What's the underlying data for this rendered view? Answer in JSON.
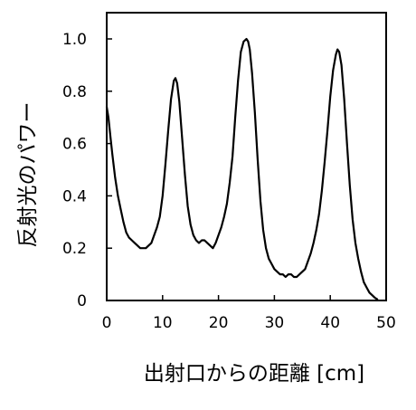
{
  "chart_data": {
    "type": "line",
    "title": "",
    "xlabel": "出射口からの距離 [cm]",
    "ylabel": "反射光のパワー",
    "xlim": [
      0,
      50
    ],
    "ylim": [
      0,
      1.0
    ],
    "x_ticks": [
      0,
      10,
      20,
      30,
      40,
      50
    ],
    "x_tick_labels": [
      "0",
      "10",
      "20",
      "30",
      "40",
      "50"
    ],
    "y_ticks": [
      0,
      0.2,
      0.4,
      0.6,
      0.8,
      1.0
    ],
    "y_tick_labels": [
      "0",
      "0.2",
      "0.4",
      "0.6",
      "0.8",
      "1.0"
    ],
    "grid": false,
    "legend": "none",
    "line_color": "#000000",
    "series": [
      {
        "x": [
          0,
          0.3,
          0.7,
          1,
          1.5,
          2,
          2.5,
          3,
          3.5,
          4,
          4.5,
          5,
          5.5,
          6,
          6.5,
          7,
          7.5,
          8,
          8.5,
          9,
          9.5,
          10,
          10.5,
          11,
          11.5,
          12,
          12.3,
          12.6,
          13,
          13.5,
          14,
          14.5,
          15,
          15.5,
          16,
          16.5,
          17,
          17.5,
          18,
          18.5,
          19,
          19.5,
          20,
          20.5,
          21,
          21.5,
          22,
          22.5,
          23,
          23.5,
          24,
          24.5,
          25,
          25.3,
          25.6,
          26,
          26.5,
          27,
          27.5,
          28,
          28.5,
          29,
          29.5,
          30,
          30.5,
          31,
          31.5,
          32,
          32.5,
          33,
          33.5,
          34,
          34.5,
          35,
          35.5,
          36,
          36.5,
          37,
          37.5,
          38,
          38.5,
          39,
          39.5,
          40,
          40.5,
          41,
          41.3,
          41.6,
          42,
          42.5,
          43,
          43.5,
          44,
          44.5,
          45,
          45.5,
          46,
          46.5,
          47,
          47.5,
          48,
          48.4
        ],
        "y": [
          0.74,
          0.7,
          0.62,
          0.56,
          0.47,
          0.4,
          0.35,
          0.3,
          0.26,
          0.24,
          0.23,
          0.22,
          0.21,
          0.2,
          0.2,
          0.2,
          0.21,
          0.22,
          0.25,
          0.28,
          0.32,
          0.4,
          0.52,
          0.65,
          0.77,
          0.84,
          0.85,
          0.83,
          0.76,
          0.62,
          0.48,
          0.36,
          0.29,
          0.25,
          0.23,
          0.22,
          0.23,
          0.23,
          0.22,
          0.21,
          0.2,
          0.22,
          0.25,
          0.28,
          0.32,
          0.37,
          0.45,
          0.55,
          0.7,
          0.84,
          0.95,
          0.99,
          1.0,
          0.99,
          0.96,
          0.87,
          0.72,
          0.54,
          0.38,
          0.27,
          0.2,
          0.16,
          0.14,
          0.12,
          0.11,
          0.1,
          0.1,
          0.09,
          0.1,
          0.1,
          0.09,
          0.09,
          0.1,
          0.11,
          0.12,
          0.15,
          0.18,
          0.22,
          0.27,
          0.33,
          0.42,
          0.53,
          0.65,
          0.78,
          0.88,
          0.94,
          0.96,
          0.95,
          0.9,
          0.77,
          0.6,
          0.44,
          0.31,
          0.22,
          0.16,
          0.11,
          0.07,
          0.05,
          0.03,
          0.02,
          0.01,
          0.005
        ]
      }
    ]
  }
}
